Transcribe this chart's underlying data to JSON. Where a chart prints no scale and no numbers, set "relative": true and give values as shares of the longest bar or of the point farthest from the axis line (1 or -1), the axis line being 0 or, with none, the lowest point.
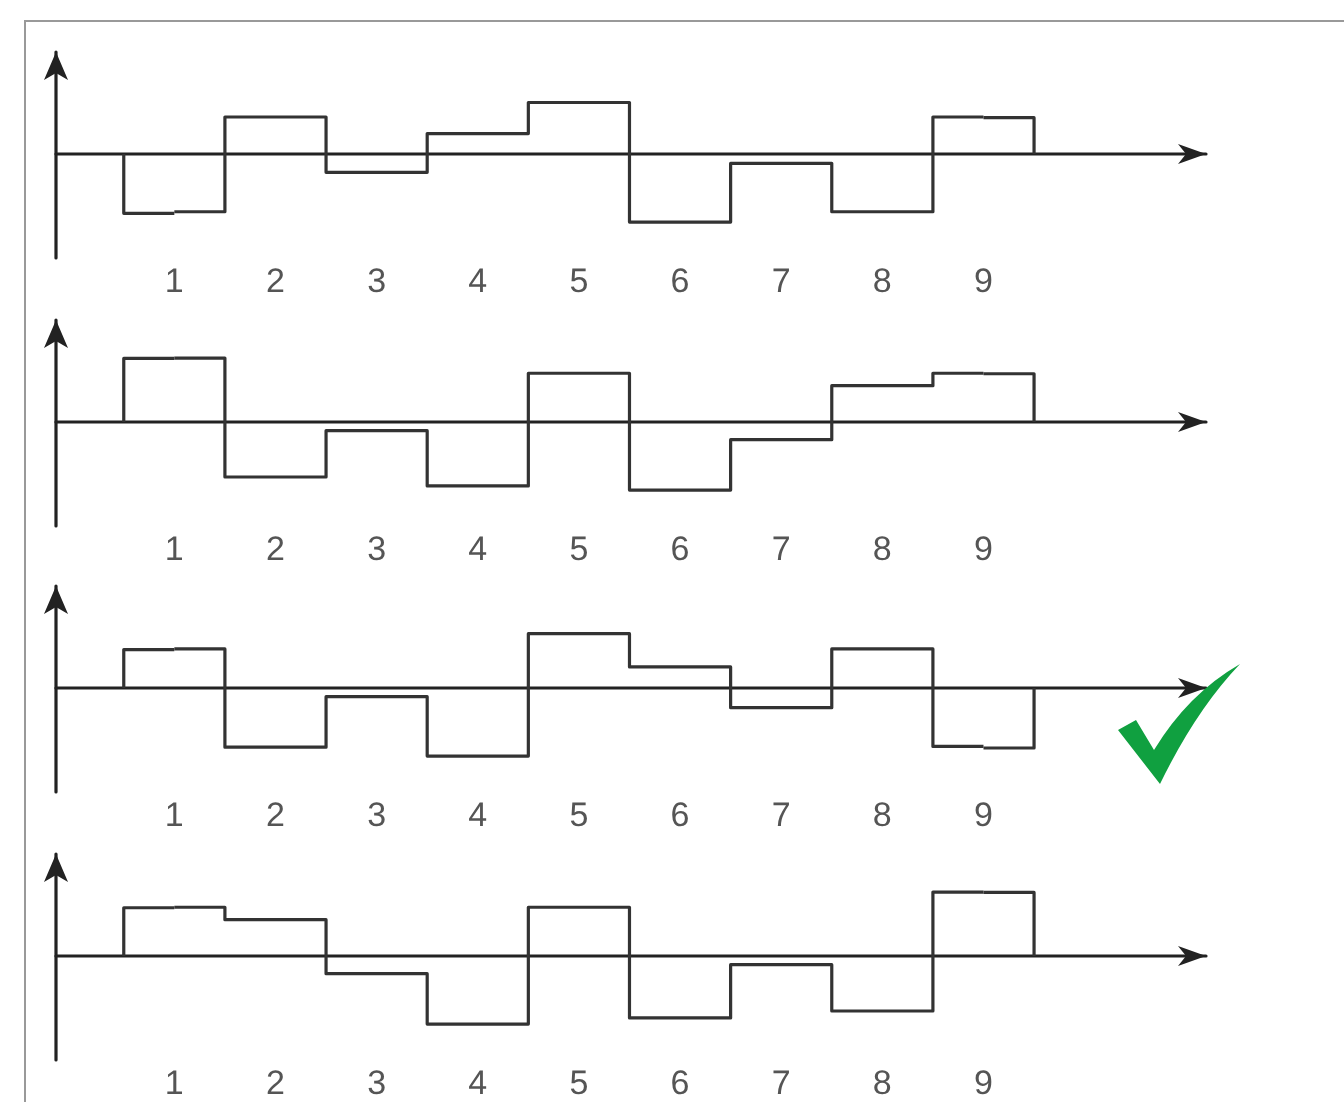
{
  "chart_data": [
    {
      "type": "step",
      "categories": [
        "1",
        "2",
        "3",
        "4",
        "5",
        "6",
        "7",
        "8",
        "9"
      ],
      "relative": true,
      "color": "#333333",
      "values": [
        -0.85,
        0.52,
        -0.28,
        0.28,
        0.73,
        -1,
        -0.15,
        -0.85,
        0.52
      ]
    },
    {
      "type": "step",
      "categories": [
        "1",
        "2",
        "3",
        "4",
        "5",
        "6",
        "7",
        "8",
        "9"
      ],
      "relative": true,
      "color": "#333333",
      "values": [
        0.91,
        -0.81,
        -0.14,
        -0.94,
        0.69,
        -1,
        -0.27,
        0.51,
        0.69
      ]
    },
    {
      "type": "step",
      "categories": [
        "1",
        "2",
        "3",
        "4",
        "5",
        "6",
        "7",
        "8",
        "9"
      ],
      "relative": true,
      "color": "#333333",
      "values": [
        0.55,
        -0.87,
        -0.14,
        -1,
        0.77,
        0.29,
        -0.3,
        0.55,
        -0.86
      ]
    },
    {
      "type": "step",
      "categories": [
        "1",
        "2",
        "3",
        "4",
        "5",
        "6",
        "7",
        "8",
        "9"
      ],
      "relative": true,
      "color": "#333333",
      "values": [
        0.69,
        0.51,
        -0.27,
        -1,
        0.69,
        -0.91,
        -0.14,
        -0.81,
        0.91
      ]
    }
  ]
}
